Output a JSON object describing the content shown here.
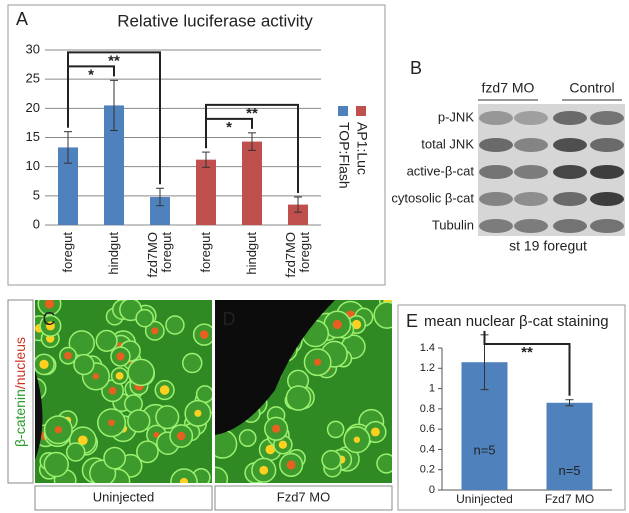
{
  "chart_data": [
    {
      "type": "bar",
      "panel_label": "A",
      "title": "Relative luciferase activity",
      "categories": [
        "foregut",
        "hindgut",
        "fzd7MO foregut",
        "foregut",
        "hindgut",
        "fzd7MO foregut"
      ],
      "series": [
        {
          "name": "TOP:Flash",
          "color": "#4f81bd",
          "values": [
            13.3,
            20.5,
            4.8,
            null,
            null,
            null
          ],
          "error": [
            2.7,
            4.3,
            1.5,
            null,
            null,
            null
          ]
        },
        {
          "name": "AP1:Luc",
          "color": "#c0504d",
          "values": [
            null,
            null,
            null,
            11.2,
            14.3,
            3.5
          ],
          "error": [
            null,
            null,
            null,
            1.3,
            1.5,
            1.3
          ]
        }
      ],
      "brackets": [
        {
          "label": "*",
          "between": [
            0,
            1
          ]
        },
        {
          "label": "**",
          "between": [
            0,
            2
          ]
        },
        {
          "label": "*",
          "between": [
            3,
            4
          ]
        },
        {
          "label": "**",
          "between": [
            3,
            5
          ]
        }
      ],
      "ylim": [
        0,
        30
      ],
      "yticks": [
        0,
        5,
        10,
        15,
        20,
        25,
        30
      ],
      "grid": true,
      "legend": "right"
    },
    {
      "type": "bar",
      "panel_label": "E",
      "title": "mean nuclear β-cat staining",
      "categories": [
        "Uninjected",
        "Fzd7 MO"
      ],
      "series": [
        {
          "color": "#4f81bd",
          "values": [
            1.26,
            0.86
          ],
          "error": [
            0.27,
            0.03
          ],
          "bar_labels": [
            "n=5",
            "n=5"
          ]
        }
      ],
      "brackets": [
        {
          "label": "**",
          "between": [
            0,
            1
          ]
        }
      ],
      "ylim": [
        0,
        1.4
      ],
      "yticks": [
        0,
        0.2,
        0.4,
        0.6,
        0.8,
        1,
        1.2,
        1.4
      ],
      "grid": false
    }
  ],
  "blot": {
    "panel_label": "B",
    "groups": [
      "fzd7 MO",
      "Control"
    ],
    "rows": [
      "p-JNK",
      "total JNK",
      "active-β-cat",
      "cytosolic β-cat",
      "Tubulin"
    ],
    "caption": "st 19 foregut"
  },
  "images": {
    "stain_label": [
      "β-catenin",
      "/nucleus"
    ],
    "panels": [
      {
        "label": "C",
        "caption": "Uninjected"
      },
      {
        "label": "D",
        "caption": "Fzd7 MO"
      }
    ]
  }
}
